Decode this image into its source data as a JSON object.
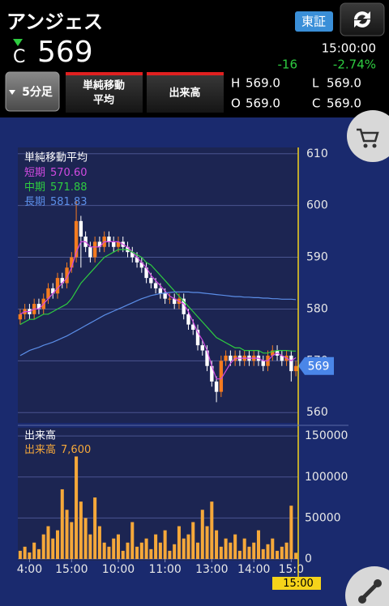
{
  "header": {
    "title": "アンジェス",
    "market": "東証",
    "price_prefix": "C",
    "price": 569,
    "time": "15:00:00",
    "change": -16,
    "change_pct": "-2.74%",
    "buttons": {
      "interval": "5分足",
      "indicator": [
        "単純移動",
        "平均"
      ],
      "volume": "出来高"
    },
    "ohlc": [
      {
        "label": "H",
        "value": "569.0"
      },
      {
        "label": "L",
        "value": "569.0"
      },
      {
        "label": "O",
        "value": "569.0"
      },
      {
        "label": "C",
        "value": "569.0"
      }
    ]
  },
  "chart_data": [
    {
      "type": "candlestick",
      "legend_title": "単純移動平均",
      "open": [
        578,
        579,
        580,
        579,
        581,
        580,
        582,
        584,
        583,
        586,
        585,
        588,
        590,
        597,
        594,
        592,
        590,
        593,
        592,
        594,
        593,
        592,
        593,
        592,
        591,
        590,
        589,
        588,
        586,
        585,
        584,
        583,
        582,
        582,
        581,
        582,
        579,
        577,
        576,
        573,
        572,
        569,
        566,
        564,
        570,
        571,
        570,
        571,
        570,
        571,
        570,
        571,
        570,
        569,
        571,
        572,
        571,
        570,
        571,
        568
      ],
      "high": [
        580,
        581,
        581,
        582,
        582,
        583,
        585,
        585,
        587,
        587,
        589,
        591,
        601,
        598,
        595,
        593,
        594,
        594,
        595,
        595,
        594,
        594,
        594,
        593,
        592,
        591,
        590,
        589,
        587,
        586,
        585,
        584,
        583,
        583,
        583,
        583,
        580,
        578,
        577,
        574,
        573,
        570,
        567,
        571,
        572,
        572,
        572,
        572,
        572,
        572,
        572,
        572,
        571,
        572,
        573,
        573,
        572,
        572,
        572,
        570
      ],
      "low": [
        577,
        578,
        578,
        578,
        579,
        579,
        581,
        582,
        582,
        584,
        584,
        587,
        589,
        588,
        591,
        589,
        589,
        591,
        591,
        592,
        591,
        591,
        591,
        590,
        589,
        588,
        587,
        585,
        584,
        583,
        582,
        581,
        581,
        580,
        580,
        578,
        576,
        575,
        572,
        571,
        568,
        565,
        562,
        563,
        569,
        569,
        569,
        569,
        569,
        569,
        569,
        569,
        568,
        568,
        570,
        570,
        569,
        569,
        566,
        567
      ],
      "close": [
        579,
        580,
        579,
        581,
        580,
        582,
        584,
        583,
        586,
        585,
        588,
        590,
        597,
        594,
        592,
        590,
        593,
        592,
        594,
        593,
        592,
        593,
        592,
        591,
        590,
        589,
        588,
        586,
        585,
        584,
        583,
        582,
        582,
        581,
        582,
        579,
        577,
        576,
        573,
        572,
        569,
        566,
        564,
        570,
        571,
        570,
        571,
        570,
        571,
        570,
        571,
        570,
        569,
        571,
        572,
        571,
        570,
        571,
        568,
        569
      ],
      "up_color": "#f47b20",
      "down_color": "#ffffff",
      "series": [
        {
          "name": "短期",
          "value_label": "570.60",
          "color": "#d04ae0",
          "values": [
            579,
            579.5,
            579.5,
            580,
            580,
            581,
            582,
            583,
            584,
            585,
            586,
            588,
            591,
            593,
            593,
            592,
            592,
            592,
            593,
            593,
            593,
            593,
            592.5,
            592,
            591,
            590,
            589,
            588,
            586.5,
            585.5,
            584.5,
            583.5,
            582.5,
            582,
            581.5,
            581,
            579.5,
            577.5,
            575.5,
            574,
            572,
            569,
            566.5,
            566.5,
            568,
            569.5,
            570.5,
            570.5,
            570.5,
            570.5,
            570.5,
            570.5,
            570,
            570,
            571,
            571.5,
            571,
            570.5,
            570,
            570.6
          ]
        },
        {
          "name": "中期",
          "value_label": "571.88",
          "color": "#2ecc40",
          "values": [
            577,
            577.5,
            578,
            578,
            578.5,
            579,
            579,
            579.5,
            580,
            580.5,
            581,
            582,
            583.5,
            585,
            586,
            587,
            588,
            589,
            590,
            590.5,
            591,
            591.5,
            591.5,
            591.5,
            591,
            590.5,
            590,
            589,
            588.5,
            587.5,
            586.5,
            585.5,
            584.5,
            583.5,
            582.5,
            581.5,
            580.5,
            579.5,
            578.5,
            577.5,
            576.5,
            575.5,
            574.5,
            574,
            573.5,
            573,
            572.5,
            572.5,
            572,
            572,
            572,
            572,
            571.5,
            571.5,
            571.8,
            572,
            572,
            572,
            571.9,
            571.88
          ]
        },
        {
          "name": "長期",
          "value_label": "581.83",
          "color": "#5b8ee8",
          "values": [
            571,
            571.5,
            572,
            572.3,
            572.6,
            573,
            573.3,
            573.6,
            574,
            574.4,
            574.8,
            575.3,
            575.8,
            576.3,
            576.8,
            577.3,
            577.8,
            578.3,
            578.8,
            579.2,
            579.6,
            580,
            580.4,
            580.8,
            581.2,
            581.6,
            582,
            582.3,
            582.6,
            582.8,
            583,
            583.1,
            583.2,
            583.3,
            583.3,
            583.3,
            583.3,
            583.2,
            583.2,
            583.1,
            583,
            582.9,
            582.8,
            582.7,
            582.6,
            582.5,
            582.4,
            582.4,
            582.3,
            582.3,
            582.2,
            582.2,
            582.1,
            582.1,
            582,
            582,
            581.9,
            581.9,
            581.9,
            581.83
          ]
        }
      ],
      "last_price_label": "569",
      "xlim": [
        -0.5,
        59.5
      ],
      "ylim": [
        558,
        612
      ],
      "yticks": [
        560,
        570,
        580,
        590,
        600,
        610
      ],
      "grid": true
    },
    {
      "type": "bar",
      "title": "出来高",
      "series": [
        {
          "name": "出来高",
          "value_label": "7,600",
          "color": "#f5a83a",
          "values": [
            10000,
            15000,
            8000,
            20000,
            12000,
            30000,
            40000,
            25000,
            35000,
            85000,
            60000,
            45000,
            125000,
            70000,
            50000,
            30000,
            75000,
            40000,
            20000,
            15000,
            25000,
            30000,
            10000,
            20000,
            45000,
            15000,
            20000,
            25000,
            12000,
            30000,
            20000,
            35000,
            10000,
            18000,
            40000,
            25000,
            30000,
            45000,
            20000,
            60000,
            40000,
            70000,
            35000,
            15000,
            25000,
            20000,
            30000,
            10000,
            25000,
            15000,
            20000,
            35000,
            12000,
            18000,
            25000,
            10000,
            15000,
            20000,
            65000,
            7600
          ]
        }
      ],
      "xlim": [
        -0.5,
        59.5
      ],
      "xticks": [
        {
          "value": 2,
          "label": "4:00"
        },
        {
          "value": 11,
          "label": "15:00"
        },
        {
          "value": 21,
          "label": "10:00"
        },
        {
          "value": 31,
          "label": "11:00"
        },
        {
          "value": 41,
          "label": "13:00"
        },
        {
          "value": 50,
          "label": "14:00"
        },
        {
          "value": 58,
          "label": "15:0"
        }
      ],
      "time_label": "15:00",
      "ylim": [
        0,
        160000
      ],
      "yticks": [
        0,
        50000,
        100000,
        150000
      ],
      "grid": true
    }
  ]
}
